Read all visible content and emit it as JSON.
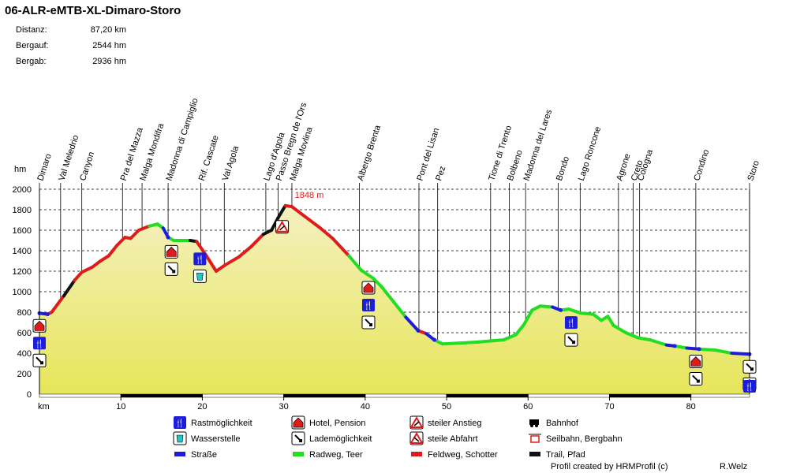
{
  "chart_data": {
    "type": "area",
    "title": "06-ALR-eMTB-XL-Dimaro-Storo",
    "stats": [
      {
        "label": "Distanz:",
        "value": "87,20 km"
      },
      {
        "label": "Bergauf:",
        "value": "2544 hm"
      },
      {
        "label": "Bergab:",
        "value": "2936 hm"
      }
    ],
    "ylabel": "hm",
    "xlabel": "km",
    "xlim": [
      0,
      87.2
    ],
    "ylim": [
      0,
      2000
    ],
    "x_ticks": [
      10,
      20,
      30,
      40,
      50,
      60,
      70,
      80
    ],
    "y_ticks": [
      0,
      200,
      400,
      600,
      800,
      1000,
      1200,
      1400,
      1600,
      1800,
      2000
    ],
    "grid": true,
    "max_label": "1848 m",
    "max_point": {
      "km": 30.2,
      "hm": 1848
    },
    "profile": [
      {
        "km": 0,
        "hm": 790,
        "s": "road"
      },
      {
        "km": 1,
        "hm": 780,
        "s": "road"
      },
      {
        "km": 1.5,
        "hm": 800,
        "s": "gravel"
      },
      {
        "km": 3,
        "hm": 960,
        "s": "gravel"
      },
      {
        "km": 4.3,
        "hm": 1110,
        "s": "trail"
      },
      {
        "km": 5.2,
        "hm": 1190,
        "s": "gravel"
      },
      {
        "km": 6.5,
        "hm": 1240,
        "s": "gravel"
      },
      {
        "km": 7.5,
        "hm": 1300,
        "s": "gravel"
      },
      {
        "km": 8.5,
        "hm": 1350,
        "s": "gravel"
      },
      {
        "km": 9.5,
        "hm": 1450,
        "s": "gravel"
      },
      {
        "km": 10.5,
        "hm": 1530,
        "s": "gravel"
      },
      {
        "km": 11.2,
        "hm": 1520,
        "s": "gravel"
      },
      {
        "km": 12.2,
        "hm": 1600,
        "s": "gravel"
      },
      {
        "km": 13.5,
        "hm": 1640,
        "s": "gravel"
      },
      {
        "km": 14.5,
        "hm": 1660,
        "s": "paved"
      },
      {
        "km": 15.2,
        "hm": 1620,
        "s": "paved"
      },
      {
        "km": 15.8,
        "hm": 1530,
        "s": "road"
      },
      {
        "km": 16.5,
        "hm": 1500,
        "s": "paved"
      },
      {
        "km": 18.5,
        "hm": 1500,
        "s": "paved"
      },
      {
        "km": 19.3,
        "hm": 1490,
        "s": "trail"
      },
      {
        "km": 20.5,
        "hm": 1350,
        "s": "gravel"
      },
      {
        "km": 21.7,
        "hm": 1200,
        "s": "gravel"
      },
      {
        "km": 22.8,
        "hm": 1260,
        "s": "gravel"
      },
      {
        "km": 24.5,
        "hm": 1340,
        "s": "gravel"
      },
      {
        "km": 26,
        "hm": 1440,
        "s": "gravel"
      },
      {
        "km": 27.5,
        "hm": 1560,
        "s": "gravel"
      },
      {
        "km": 28.5,
        "hm": 1600,
        "s": "trail"
      },
      {
        "km": 29.3,
        "hm": 1720,
        "s": "trail"
      },
      {
        "km": 30.2,
        "hm": 1840,
        "s": "trail"
      },
      {
        "km": 31,
        "hm": 1830,
        "s": "gravel"
      },
      {
        "km": 32.5,
        "hm": 1740,
        "s": "gravel"
      },
      {
        "km": 34.5,
        "hm": 1620,
        "s": "gravel"
      },
      {
        "km": 36,
        "hm": 1520,
        "s": "gravel"
      },
      {
        "km": 38,
        "hm": 1350,
        "s": "gravel"
      },
      {
        "km": 39.5,
        "hm": 1210,
        "s": "paved"
      },
      {
        "km": 41,
        "hm": 1130,
        "s": "paved"
      },
      {
        "km": 42,
        "hm": 1050,
        "s": "paved"
      },
      {
        "km": 43.5,
        "hm": 900,
        "s": "paved"
      },
      {
        "km": 45,
        "hm": 750,
        "s": "paved"
      },
      {
        "km": 46.5,
        "hm": 620,
        "s": "road"
      },
      {
        "km": 47.5,
        "hm": 590,
        "s": "gravel"
      },
      {
        "km": 48.5,
        "hm": 530,
        "s": "road"
      },
      {
        "km": 49.5,
        "hm": 490,
        "s": "paved"
      },
      {
        "km": 52,
        "hm": 500,
        "s": "paved"
      },
      {
        "km": 54,
        "hm": 510,
        "s": "paved"
      },
      {
        "km": 55.5,
        "hm": 520,
        "s": "paved"
      },
      {
        "km": 57,
        "hm": 530,
        "s": "paved"
      },
      {
        "km": 58.5,
        "hm": 580,
        "s": "paved"
      },
      {
        "km": 59.5,
        "hm": 680,
        "s": "paved"
      },
      {
        "km": 60.5,
        "hm": 820,
        "s": "paved"
      },
      {
        "km": 61.5,
        "hm": 860,
        "s": "paved"
      },
      {
        "km": 63,
        "hm": 850,
        "s": "paved"
      },
      {
        "km": 64,
        "hm": 820,
        "s": "road"
      },
      {
        "km": 65,
        "hm": 830,
        "s": "paved"
      },
      {
        "km": 66.5,
        "hm": 790,
        "s": "paved"
      },
      {
        "km": 68,
        "hm": 780,
        "s": "paved"
      },
      {
        "km": 69,
        "hm": 720,
        "s": "paved"
      },
      {
        "km": 69.8,
        "hm": 760,
        "s": "paved"
      },
      {
        "km": 70.5,
        "hm": 670,
        "s": "paved"
      },
      {
        "km": 72,
        "hm": 600,
        "s": "paved"
      },
      {
        "km": 73.5,
        "hm": 550,
        "s": "paved"
      },
      {
        "km": 75,
        "hm": 530,
        "s": "paved"
      },
      {
        "km": 77,
        "hm": 480,
        "s": "paved"
      },
      {
        "km": 78,
        "hm": 470,
        "s": "road"
      },
      {
        "km": 79.5,
        "hm": 450,
        "s": "paved"
      },
      {
        "km": 81,
        "hm": 440,
        "s": "road"
      },
      {
        "km": 83,
        "hm": 430,
        "s": "paved"
      },
      {
        "km": 85,
        "hm": 400,
        "s": "paved"
      },
      {
        "km": 87.2,
        "hm": 390,
        "s": "road"
      }
    ],
    "places": [
      {
        "name": "Dimaro",
        "km": 0
      },
      {
        "name": "Val Meledrio",
        "km": 2.6
      },
      {
        "name": "Canyon",
        "km": 5.2
      },
      {
        "name": "Pra del Mazza",
        "km": 10.2
      },
      {
        "name": "Malga Mondifra",
        "km": 12.6
      },
      {
        "name": "Madonna di Campiglio",
        "km": 15.8
      },
      {
        "name": "Rif. Cascate",
        "km": 19.8
      },
      {
        "name": "Val Agola",
        "km": 22.7
      },
      {
        "name": "Lago d'Agola",
        "km": 27.8
      },
      {
        "name": "Passo Bregn de l'Ors",
        "km": 29.3
      },
      {
        "name": "Malga Movlina",
        "km": 31
      },
      {
        "name": "Albergo Brenta",
        "km": 39.3
      },
      {
        "name": "Pont del Lisan",
        "km": 46.6
      },
      {
        "name": "Pez",
        "km": 48.9
      },
      {
        "name": "Tione di Trento",
        "km": 55.4
      },
      {
        "name": "Bolbeno",
        "km": 57.7
      },
      {
        "name": "Madonna del Lares",
        "km": 59.7
      },
      {
        "name": "Bondo",
        "km": 63.7
      },
      {
        "name": "Lago Roncone",
        "km": 66.4
      },
      {
        "name": "Agrone",
        "km": 71.1
      },
      {
        "name": "Creto",
        "km": 72.9
      },
      {
        "name": "Cologna",
        "km": 73.7
      },
      {
        "name": "Condino",
        "km": 80.6
      },
      {
        "name": "Storo",
        "km": 87.2
      }
    ],
    "markers": [
      {
        "km": 0,
        "types": [
          "hotel",
          "rest",
          "charge"
        ]
      },
      {
        "km": 16.2,
        "types": [
          "hotel",
          "charge"
        ]
      },
      {
        "km": 19.7,
        "types": [
          "rest",
          "water"
        ]
      },
      {
        "km": 29.8,
        "types": [
          "climb"
        ]
      },
      {
        "km": 40.4,
        "types": [
          "hotel",
          "rest",
          "charge"
        ]
      },
      {
        "km": 65.3,
        "types": [
          "rest",
          "charge"
        ]
      },
      {
        "km": 80.6,
        "types": [
          "hotel",
          "charge"
        ]
      },
      {
        "km": 87.2,
        "types": [
          "charge",
          "hotel",
          "rest"
        ]
      }
    ],
    "colors": {
      "fill_top": "#f5f0c0",
      "fill_bottom": "#e6e65a",
      "paved": "#22dd22",
      "gravel": "#dd1c1c",
      "road": "#1c1cdd",
      "trail": "#111111",
      "grid": "#000000",
      "max_label": "#dd1c1c"
    },
    "legend": [
      {
        "icon": "rest",
        "label": "Rastmöglichkeit"
      },
      {
        "icon": "hotel",
        "label": "Hotel, Pension"
      },
      {
        "icon": "climb",
        "label": "steiler Anstieg"
      },
      {
        "icon": "train",
        "label": "Bahnhof"
      },
      {
        "icon": "water",
        "label": "Wasserstelle"
      },
      {
        "icon": "charge",
        "label": "Lademöglichkeit"
      },
      {
        "icon": "descent",
        "label": "steile Abfahrt"
      },
      {
        "icon": "cable",
        "label": "Seilbahn, Bergbahn"
      },
      {
        "icon": "road",
        "label": "Straße"
      },
      {
        "icon": "paved",
        "label": "Radweg, Teer"
      },
      {
        "icon": "gravel",
        "label": "Feldweg, Schotter"
      },
      {
        "icon": "trail",
        "label": "Trail, Pfad"
      }
    ],
    "credit": "Profil created by HRMProfil (c)",
    "author": "R.Welz"
  }
}
